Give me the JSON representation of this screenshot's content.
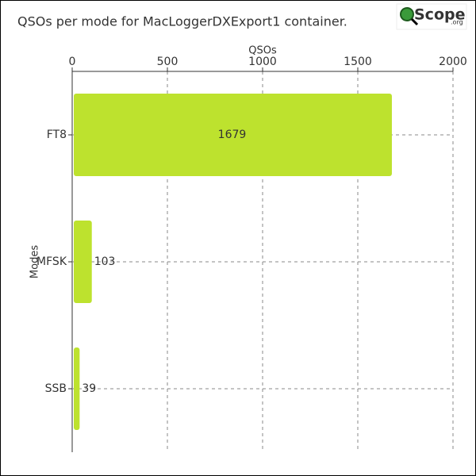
{
  "chart_data": {
    "type": "bar",
    "orientation": "horizontal",
    "title": "QSOs per mode for MacLoggerDXExport1 container.",
    "logo": {
      "text": "Scope",
      "suffix": ".org"
    },
    "xlabel": "QSOs",
    "ylabel": "Modes",
    "categories": [
      "FT8",
      "MFSK",
      "SSB"
    ],
    "values": [
      1679,
      103,
      39
    ],
    "color": "#bde22e",
    "xlim": [
      0,
      2000
    ],
    "xticks": [
      0,
      500,
      1000,
      1500,
      2000
    ],
    "grid": true
  }
}
